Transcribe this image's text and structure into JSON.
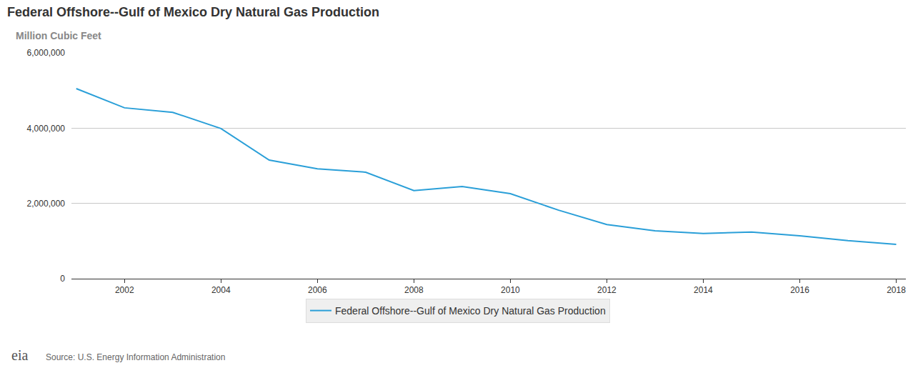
{
  "chart_data": {
    "type": "line",
    "title": "Federal Offshore--Gulf of Mexico Dry Natural Gas Production",
    "subtitle": "Million Cubic Feet",
    "source": "Source: U.S. Energy Information Administration",
    "logo_text": "eia",
    "x": [
      2001,
      2002,
      2003,
      2004,
      2005,
      2006,
      2007,
      2008,
      2009,
      2010,
      2011,
      2012,
      2013,
      2014,
      2015,
      2016,
      2017,
      2018
    ],
    "series": [
      {
        "name": "Federal Offshore--Gulf of Mexico Dry Natural Gas Production",
        "color": "#2a9fd8",
        "values": [
          5050000,
          4540000,
          4420000,
          3990000,
          3150000,
          2920000,
          2830000,
          2340000,
          2450000,
          2260000,
          1820000,
          1440000,
          1270000,
          1200000,
          1240000,
          1140000,
          1010000,
          910000
        ]
      }
    ],
    "xlim": [
      2000.9,
      2018.2
    ],
    "xticks": [
      2002,
      2004,
      2006,
      2008,
      2010,
      2012,
      2014,
      2016,
      2018
    ],
    "ylim": [
      0,
      6000000
    ],
    "yticks": [
      0,
      {
        "value": 2000000,
        "label": "2,000,000"
      },
      {
        "value": 4000000,
        "label": "4,000,000"
      },
      {
        "value": 6000000,
        "label": "6,000,000"
      }
    ],
    "grid": true,
    "legend": "bottom"
  }
}
